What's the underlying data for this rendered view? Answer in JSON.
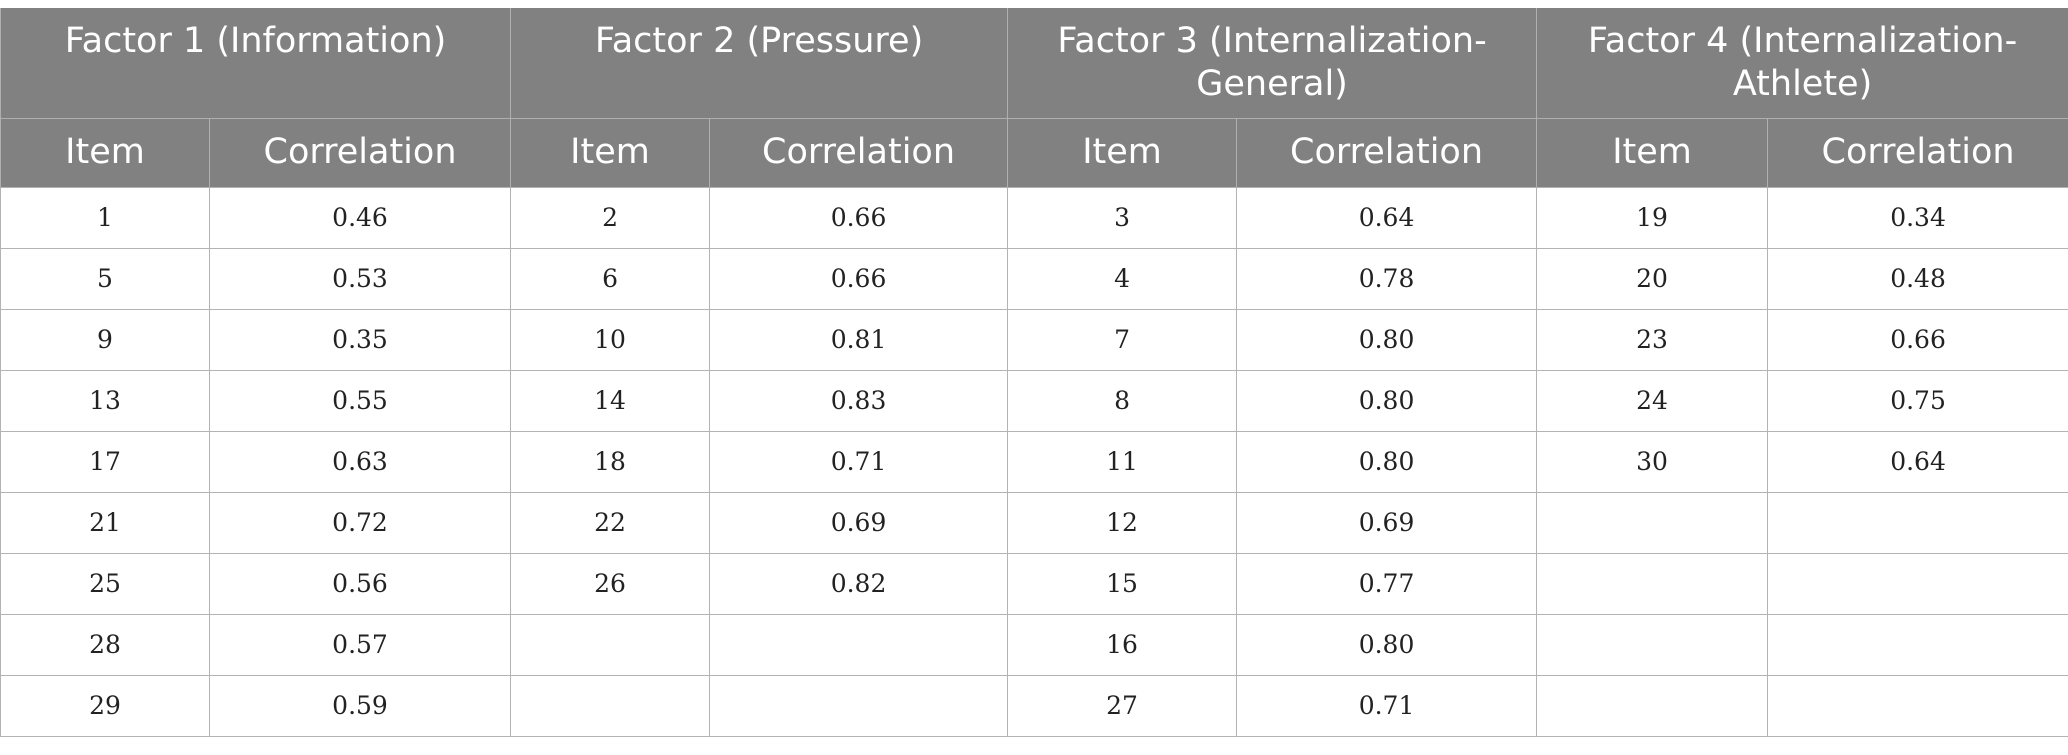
{
  "header": {
    "factors": [
      {
        "label": "Factor 1 (Information)"
      },
      {
        "label": "Factor 2 (Pressure)"
      },
      {
        "label": "Factor 3 (Internalization-General)"
      },
      {
        "label": "Factor 4 (Internalization-Athlete)"
      }
    ],
    "item_label": "Item",
    "correlation_label": "Correlation"
  },
  "rows": [
    [
      {
        "item": "1",
        "corr": "0.46"
      },
      {
        "item": "2",
        "corr": "0.66"
      },
      {
        "item": "3",
        "corr": "0.64"
      },
      {
        "item": "19",
        "corr": "0.34"
      }
    ],
    [
      {
        "item": "5",
        "corr": "0.53"
      },
      {
        "item": "6",
        "corr": "0.66"
      },
      {
        "item": "4",
        "corr": "0.78"
      },
      {
        "item": "20",
        "corr": "0.48"
      }
    ],
    [
      {
        "item": "9",
        "corr": "0.35"
      },
      {
        "item": "10",
        "corr": "0.81"
      },
      {
        "item": "7",
        "corr": "0.80"
      },
      {
        "item": "23",
        "corr": "0.66"
      }
    ],
    [
      {
        "item": "13",
        "corr": "0.55"
      },
      {
        "item": "14",
        "corr": "0.83"
      },
      {
        "item": "8",
        "corr": "0.80"
      },
      {
        "item": "24",
        "corr": "0.75"
      }
    ],
    [
      {
        "item": "17",
        "corr": "0.63"
      },
      {
        "item": "18",
        "corr": "0.71"
      },
      {
        "item": "11",
        "corr": "0.80"
      },
      {
        "item": "30",
        "corr": "0.64"
      }
    ],
    [
      {
        "item": "21",
        "corr": "0.72"
      },
      {
        "item": "22",
        "corr": "0.69"
      },
      {
        "item": "12",
        "corr": "0.69"
      },
      {
        "item": "",
        "corr": ""
      }
    ],
    [
      {
        "item": "25",
        "corr": "0.56"
      },
      {
        "item": "26",
        "corr": "0.82"
      },
      {
        "item": "15",
        "corr": "0.77"
      },
      {
        "item": "",
        "corr": ""
      }
    ],
    [
      {
        "item": "28",
        "corr": "0.57"
      },
      {
        "item": "",
        "corr": ""
      },
      {
        "item": "16",
        "corr": "0.80"
      },
      {
        "item": "",
        "corr": ""
      }
    ],
    [
      {
        "item": "29",
        "corr": "0.59"
      },
      {
        "item": "",
        "corr": ""
      },
      {
        "item": "27",
        "corr": "0.71"
      },
      {
        "item": "",
        "corr": ""
      }
    ]
  ]
}
